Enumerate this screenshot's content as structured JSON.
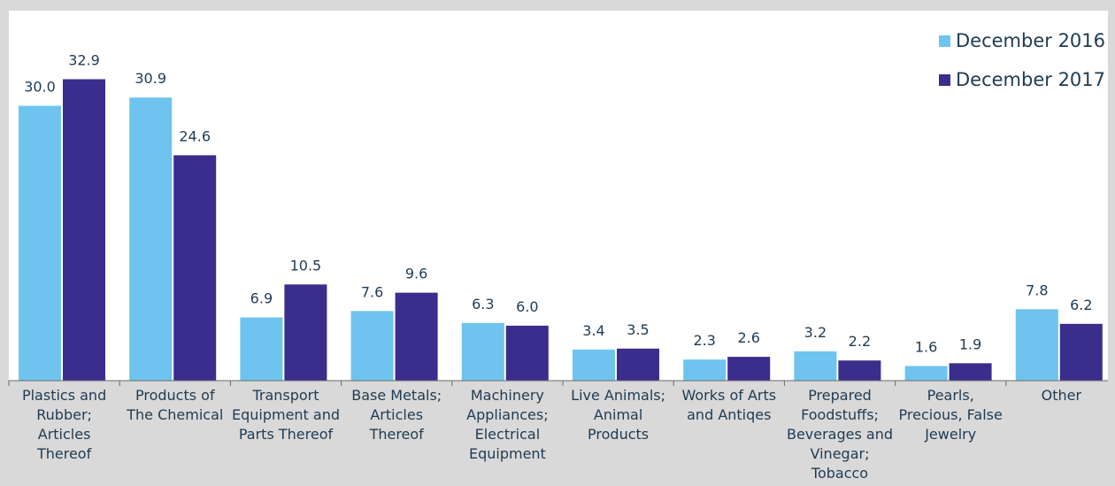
{
  "chart_data": {
    "type": "bar",
    "categories": [
      "Plastics and Rubber; Articles Thereof",
      "Products of The Chemical",
      "Transport Equipment and Parts Thereof",
      "Base Metals; Articles Thereof",
      "Machinery Appliances; Electrical Equipment",
      "Live Animals; Animal Products",
      "Works of Arts and Antiqes",
      "Prepared Foodstuffs; Beverages and Vinegar; Tobacco",
      "Pearls, Precious, False Jewelry",
      "Other"
    ],
    "category_lines": [
      [
        "Plastics and",
        "Rubber;",
        "Articles",
        "Thereof"
      ],
      [
        "Products of",
        "The Chemical"
      ],
      [
        "Transport",
        "Equipment and",
        "Parts Thereof"
      ],
      [
        "Base Metals;",
        "Articles",
        "Thereof"
      ],
      [
        "Machinery",
        "Appliances;",
        "Electrical",
        "Equipment"
      ],
      [
        "Live Animals;",
        "Animal",
        "Products"
      ],
      [
        "Works of Arts",
        "and Antiqes"
      ],
      [
        "Prepared",
        "Foodstuffs;",
        "Beverages and",
        "Vinegar;",
        "Tobacco"
      ],
      [
        "Pearls,",
        "Precious, False",
        "Jewelry"
      ],
      [
        "Other"
      ]
    ],
    "series": [
      {
        "name": "December 2016",
        "color": "#6ec4ee",
        "values": [
          30.0,
          30.9,
          6.9,
          7.6,
          6.3,
          3.4,
          2.3,
          3.2,
          1.6,
          7.8
        ],
        "labels": [
          "30.0",
          "30.9",
          "6.9",
          "7.6",
          "6.3",
          "3.4",
          "2.3",
          "3.2",
          "1.6",
          "7.8"
        ]
      },
      {
        "name": "December 2017",
        "color": "#3a2d8c",
        "values": [
          32.9,
          24.6,
          10.5,
          9.6,
          6.0,
          3.5,
          2.6,
          2.2,
          1.9,
          6.2
        ],
        "labels": [
          "32.9",
          "24.6",
          "10.5",
          "9.6",
          "6.0",
          "3.5",
          "2.6",
          "2.2",
          "1.9",
          "6.2"
        ]
      }
    ],
    "ylim": [
      0,
      34
    ],
    "grid": false,
    "legend_position": "top-right"
  },
  "colors": {
    "background": "#d9d9d9",
    "plot_area": "#ffffff",
    "text": "#1f3b52",
    "axis": "#6a6a6a"
  }
}
